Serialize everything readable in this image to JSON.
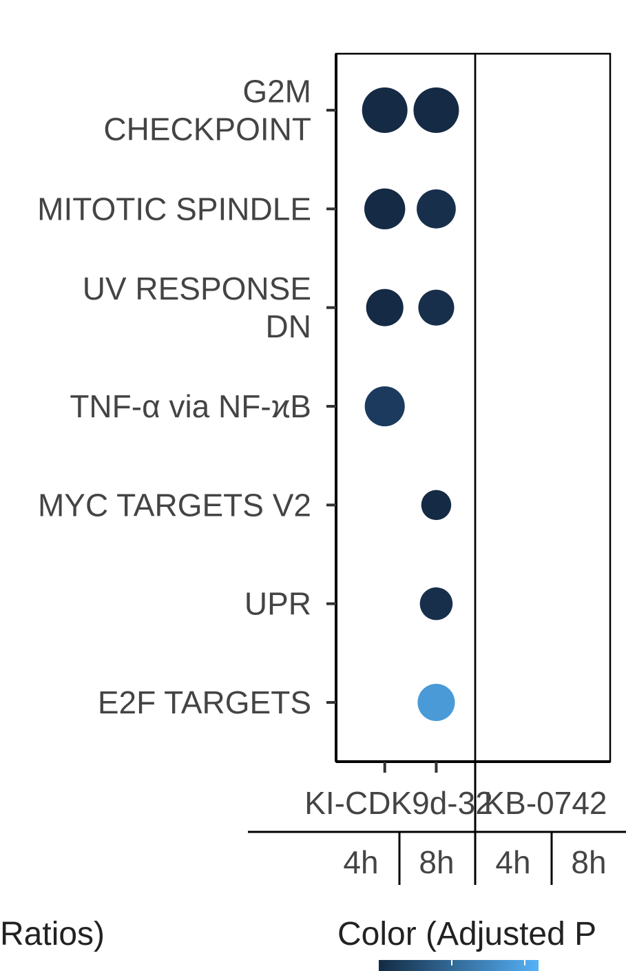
{
  "chart_data": {
    "type": "scatter",
    "subtype": "dot-plot",
    "categories_y": [
      "G2M\nCHECKPOINT",
      "MITOTIC SPINDLE",
      "UV RESPONSE\nDN",
      "TNF-α via NF-ϰB",
      "MYC TARGETS V2",
      "UPR",
      "E2F TARGETS"
    ],
    "facets": [
      {
        "label": "KI-CDK9d-32",
        "timepoints": [
          "4h",
          "8h"
        ]
      },
      {
        "label": "KB-0742",
        "timepoints": [
          "4h",
          "8h"
        ]
      }
    ],
    "points": [
      {
        "pathway": "G2M\nCHECKPOINT",
        "facet": "KI-CDK9d-32",
        "time": "4h",
        "size": 1.0,
        "color": "#152a44"
      },
      {
        "pathway": "G2M\nCHECKPOINT",
        "facet": "KI-CDK9d-32",
        "time": "8h",
        "size": 1.0,
        "color": "#152a44"
      },
      {
        "pathway": "MITOTIC SPINDLE",
        "facet": "KI-CDK9d-32",
        "time": "4h",
        "size": 0.9,
        "color": "#152a44"
      },
      {
        "pathway": "MITOTIC SPINDLE",
        "facet": "KI-CDK9d-32",
        "time": "8h",
        "size": 0.86,
        "color": "#182f4c"
      },
      {
        "pathway": "UV RESPONSE\nDN",
        "facet": "KI-CDK9d-32",
        "time": "4h",
        "size": 0.82,
        "color": "#152a44"
      },
      {
        "pathway": "UV RESPONSE\nDN",
        "facet": "KI-CDK9d-32",
        "time": "8h",
        "size": 0.79,
        "color": "#182f4c"
      },
      {
        "pathway": "TNF-α via NF-ϰB",
        "facet": "KI-CDK9d-32",
        "time": "4h",
        "size": 0.88,
        "color": "#1c3a5e"
      },
      {
        "pathway": "MYC TARGETS V2",
        "facet": "KI-CDK9d-32",
        "time": "8h",
        "size": 0.66,
        "color": "#152a44"
      },
      {
        "pathway": "UPR",
        "facet": "KI-CDK9d-32",
        "time": "8h",
        "size": 0.72,
        "color": "#182f4c"
      },
      {
        "pathway": "E2F TARGETS",
        "facet": "KI-CDK9d-32",
        "time": "8h",
        "size": 0.82,
        "color": "#4a9ad8"
      }
    ],
    "legend": {
      "size_title_fragment": "Ratios)",
      "color_title_fragment": "Color (Adjusted P",
      "color_low": "#132b43",
      "color_high": "#56b1f7"
    },
    "grid": false
  }
}
